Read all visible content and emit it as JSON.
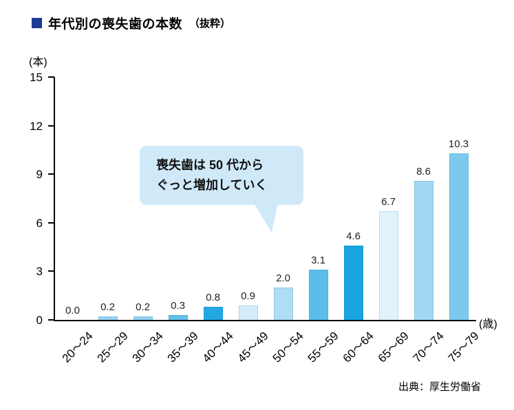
{
  "header": {
    "title": "年代別の喪失歯の本数",
    "suffix": "（抜粋）",
    "accent_color": "#1e3a93"
  },
  "callout": {
    "line1": "喪失歯は 50 代から",
    "line2": "ぐっと増加していく",
    "bg_color": "#cfe9f8"
  },
  "footer": {
    "source": "出典：厚生労働省"
  },
  "chart_data": {
    "type": "bar",
    "title": "年代別の喪失歯の本数（抜粋）",
    "y_unit": "(本)",
    "x_unit": "(歳)",
    "categories": [
      "20～24",
      "25～29",
      "30～34",
      "35～39",
      "40～44",
      "45～49",
      "50～54",
      "55～59",
      "60～64",
      "65～69",
      "70～74",
      "75～79"
    ],
    "values": [
      0.0,
      0.2,
      0.2,
      0.3,
      0.8,
      0.9,
      2.0,
      3.1,
      4.6,
      6.7,
      8.6,
      10.3
    ],
    "labels": [
      "0.0",
      "0.2",
      "0.2",
      "0.3",
      "0.8",
      "0.9",
      "2.0",
      "3.1",
      "4.6",
      "6.7",
      "8.6",
      "10.3"
    ],
    "bar_colors": [
      "none",
      "#96d3f0",
      "#96d3f0",
      "#62c0ea",
      "#24a8e2",
      "#d4ecf9",
      "#aeddf4",
      "#5cbde9",
      "#18a5e1",
      "#e2f2fb",
      "#a0d8f2",
      "#7bcaee"
    ],
    "ylim": [
      0,
      15
    ],
    "yticks": [
      0,
      3,
      6,
      9,
      12,
      15
    ],
    "grid": false,
    "legend": false
  }
}
